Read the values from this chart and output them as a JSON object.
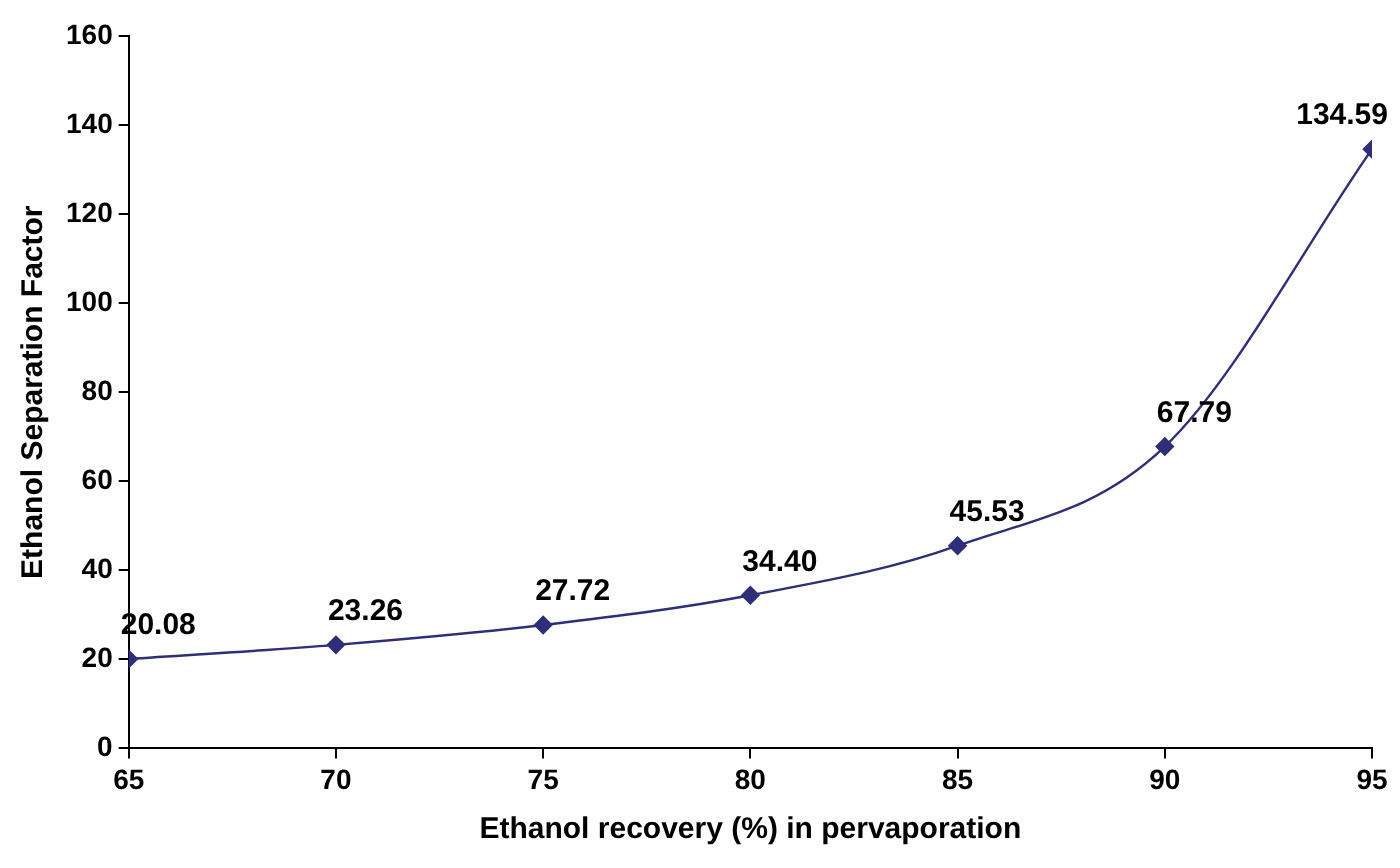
{
  "chart_data": {
    "type": "line",
    "xlabel": "Ethanol recovery (%) in pervaporation",
    "ylabel": "Ethanol Separation Factor",
    "x": [
      65,
      70,
      75,
      80,
      85,
      90,
      95
    ],
    "series": [
      {
        "color": "#2e2e7a",
        "values": [
          20.08,
          23.26,
          27.72,
          34.4,
          45.53,
          67.79,
          134.59
        ],
        "value_labels": [
          "20.08",
          "23.26",
          "27.72",
          "34.40",
          "45.53",
          "67.79",
          "134.59"
        ]
      }
    ],
    "xlim": [
      65,
      95
    ],
    "xticks": [
      65,
      70,
      75,
      80,
      85,
      90,
      95
    ],
    "ylim": [
      0,
      160
    ],
    "yticks": [
      0,
      20,
      40,
      60,
      80,
      100,
      120,
      140,
      160
    ],
    "grid": false,
    "legend": false,
    "marker": "diamond",
    "line_style": "solid"
  }
}
